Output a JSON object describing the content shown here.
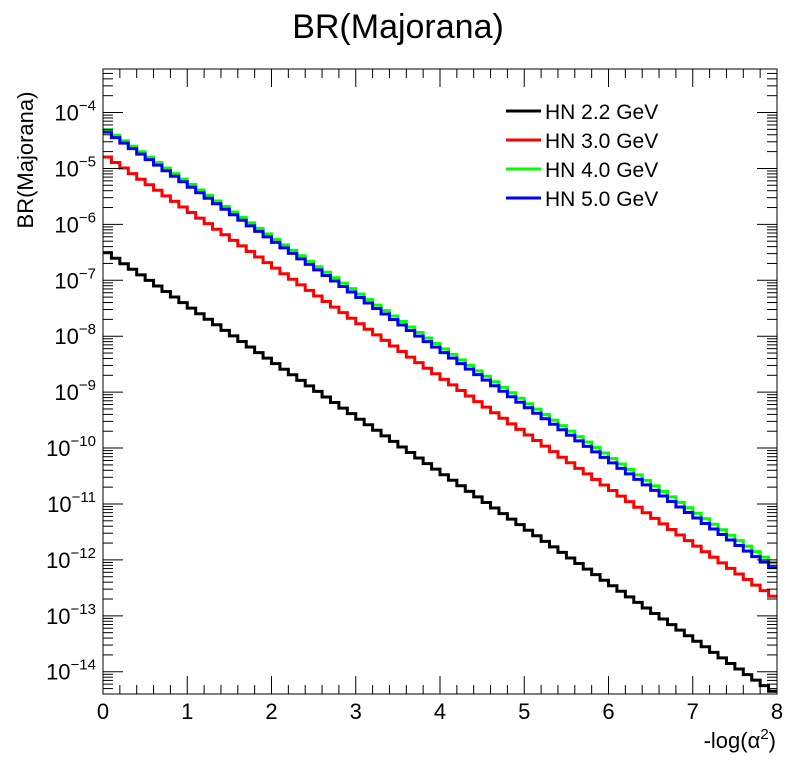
{
  "chart_data": {
    "type": "line",
    "title": "BR(Majorana)",
    "xlabel": "-log(α²)",
    "xlabel_parts": {
      "base": "-log(α",
      "sup": "2",
      "tail": ")"
    },
    "ylabel": "BR(Majorana)",
    "x_scale": "linear",
    "y_scale": "log",
    "xlim": [
      0,
      8
    ],
    "ylim": [
      4e-15,
      0.0006
    ],
    "x_ticks": [
      0,
      1,
      2,
      3,
      4,
      5,
      6,
      7,
      8
    ],
    "x_tick_labels": [
      "0",
      "1",
      "2",
      "3",
      "4",
      "5",
      "6",
      "7",
      "8"
    ],
    "y_tick_exponents": [
      -14,
      -13,
      -12,
      -11,
      -10,
      -9,
      -8,
      -7,
      -6,
      -5,
      -4
    ],
    "y_tick_base": "10",
    "style": "step-histogram",
    "bins": 80,
    "legend_position": "top-right",
    "grid": false,
    "series": [
      {
        "name": "HN 2.2 GeV",
        "color": "#000000",
        "x": [
          0,
          8
        ],
        "y": [
          3.5e-07,
          4e-15
        ]
      },
      {
        "name": "HN 3.0 GeV",
        "color": "#ff0000",
        "x": [
          0,
          8
        ],
        "y": [
          1.8e-05,
          2e-13
        ]
      },
      {
        "name": "HN 4.0 GeV",
        "color": "#00ff00",
        "x": [
          0,
          8
        ],
        "y": [
          5.5e-05,
          8e-13
        ]
      },
      {
        "name": "HN 5.0 GeV",
        "color": "#0000ff",
        "x": [
          0,
          8
        ],
        "y": [
          5e-05,
          6.5e-13
        ]
      }
    ]
  }
}
